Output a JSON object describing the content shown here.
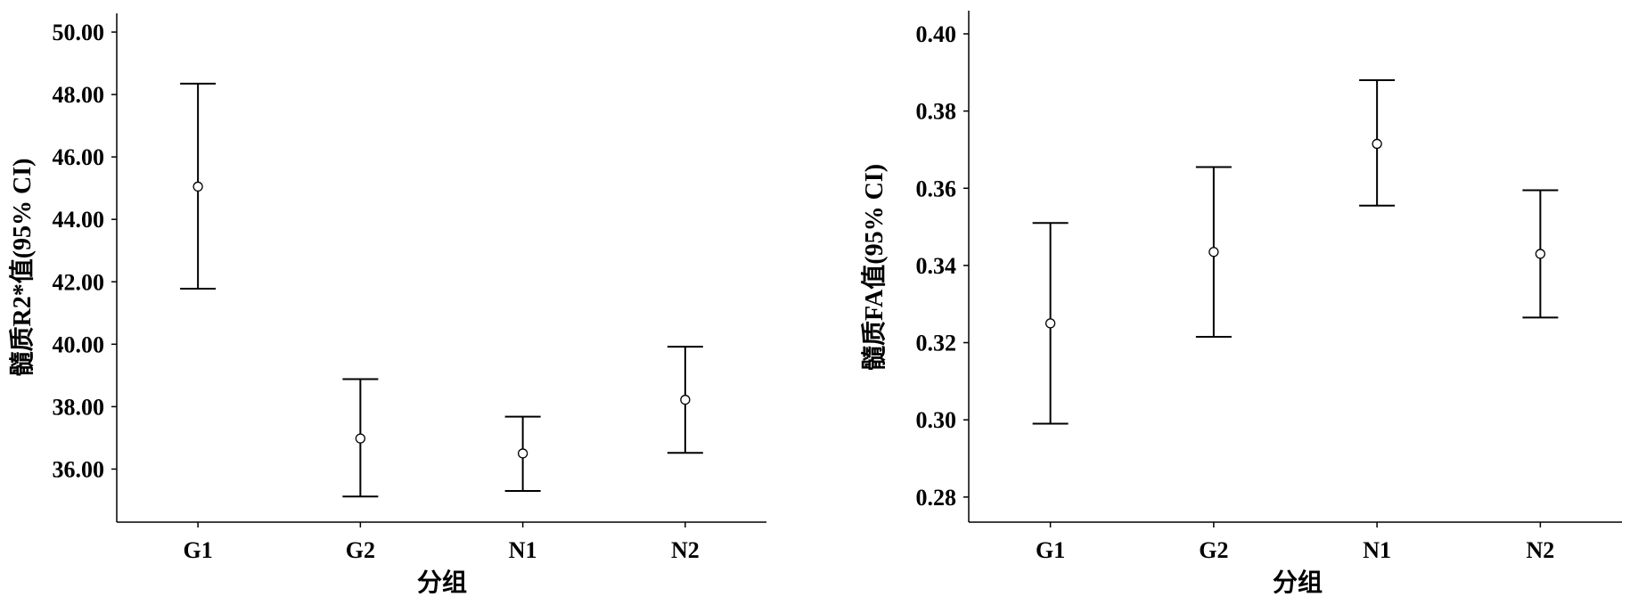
{
  "colors": {
    "axis": "#000000",
    "marker": "#000000",
    "background": "#ffffff"
  },
  "chart_data": [
    {
      "type": "errorbar",
      "xlabel": "分组",
      "ylabel": "髓质R2*值(95% CI)",
      "categories": [
        "G1",
        "G2",
        "N1",
        "N2"
      ],
      "yticks": [
        "36.00",
        "38.00",
        "40.00",
        "42.00",
        "44.00",
        "46.00",
        "48.00",
        "50.00"
      ],
      "ylim": [
        34.3,
        50.6
      ],
      "series": [
        {
          "mean": [
            45.05,
            36.98,
            36.5,
            38.22
          ],
          "ci_low": [
            41.78,
            35.12,
            35.3,
            36.52
          ],
          "ci_high": [
            48.35,
            38.88,
            37.68,
            39.92
          ]
        }
      ]
    },
    {
      "type": "errorbar",
      "xlabel": "分组",
      "ylabel": "髓质FA值(95% CI)",
      "categories": [
        "G1",
        "G2",
        "N1",
        "N2"
      ],
      "yticks": [
        "0.28",
        "0.30",
        "0.32",
        "0.34",
        "0.36",
        "0.38",
        "0.40"
      ],
      "ylim": [
        0.2735,
        0.406
      ],
      "series": [
        {
          "mean": [
            0.325,
            0.3435,
            0.3715,
            0.343
          ],
          "ci_low": [
            0.299,
            0.3215,
            0.3555,
            0.3265
          ],
          "ci_high": [
            0.351,
            0.3655,
            0.388,
            0.3595
          ]
        }
      ]
    }
  ]
}
